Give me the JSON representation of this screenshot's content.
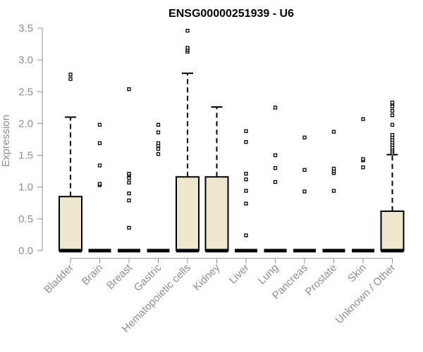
{
  "chart_data": {
    "type": "box",
    "title": "ENSG00000251939 - U6",
    "xlabel": "",
    "ylabel": "Expression",
    "ylim": [
      0,
      3.5
    ],
    "yticks": [
      "0.0",
      "0.5",
      "1.0",
      "1.5",
      "2.0",
      "2.5",
      "3.0",
      "3.5"
    ],
    "grid": false,
    "box_fill": "#ede8cd",
    "box_stroke": "#000000",
    "axis_color": "#8f8f8f",
    "categories": [
      {
        "label": "Bladder",
        "min": 0,
        "q1": 0,
        "median": 0,
        "q3": 0.85,
        "max": 2.1,
        "outliers": [
          2.7,
          2.77
        ]
      },
      {
        "label": "Brain",
        "min": 0,
        "q1": 0,
        "median": 0,
        "q3": 0,
        "max": 0,
        "outliers": [
          1.03,
          1.05,
          1.34,
          1.69,
          1.98
        ]
      },
      {
        "label": "Breast",
        "min": 0,
        "q1": 0,
        "median": 0,
        "q3": 0,
        "max": 0,
        "outliers": [
          0.36,
          0.79,
          0.9,
          1.07,
          1.14,
          1.19,
          1.21,
          2.54
        ]
      },
      {
        "label": "Gastric",
        "min": 0,
        "q1": 0,
        "median": 0,
        "q3": 0,
        "max": 0,
        "outliers": [
          1.52,
          1.6,
          1.65,
          1.69,
          1.86,
          1.98
        ]
      },
      {
        "label": "Hematopoietic cells",
        "min": 0,
        "q1": 0,
        "median": 0,
        "q3": 1.16,
        "max": 2.79,
        "outliers": [
          3.13,
          3.16,
          3.19,
          3.46
        ]
      },
      {
        "label": "Kidney",
        "min": 0,
        "q1": 0,
        "median": 0,
        "q3": 1.16,
        "max": 2.26,
        "outliers": []
      },
      {
        "label": "Liver",
        "min": 0,
        "q1": 0,
        "median": 0,
        "q3": 0,
        "max": 0,
        "outliers": [
          0.24,
          0.74,
          0.94,
          1.12,
          1.21,
          1.71,
          1.88
        ]
      },
      {
        "label": "Lung",
        "min": 0,
        "q1": 0,
        "median": 0,
        "q3": 0,
        "max": 0,
        "outliers": [
          1.08,
          1.3,
          1.5,
          2.25
        ]
      },
      {
        "label": "Pancreas",
        "min": 0,
        "q1": 0,
        "median": 0,
        "q3": 0,
        "max": 0,
        "outliers": [
          0.93,
          1.27,
          1.78
        ]
      },
      {
        "label": "Prostate",
        "min": 0,
        "q1": 0,
        "median": 0,
        "q3": 0,
        "max": 0,
        "outliers": [
          0.94,
          1.22,
          1.25,
          1.29,
          1.87
        ]
      },
      {
        "label": "Skin",
        "min": 0,
        "q1": 0,
        "median": 0,
        "q3": 0,
        "max": 0,
        "outliers": [
          1.31,
          1.42,
          1.44,
          2.07
        ]
      },
      {
        "label": "Unknown / Other",
        "min": 0,
        "q1": 0,
        "median": 0,
        "q3": 0.62,
        "max": 1.51,
        "outliers": [
          1.53,
          1.56,
          1.59,
          1.62,
          1.66,
          1.7,
          1.74,
          1.78,
          1.82,
          1.98,
          2.13,
          2.2,
          2.27,
          2.31,
          2.33
        ]
      }
    ]
  }
}
